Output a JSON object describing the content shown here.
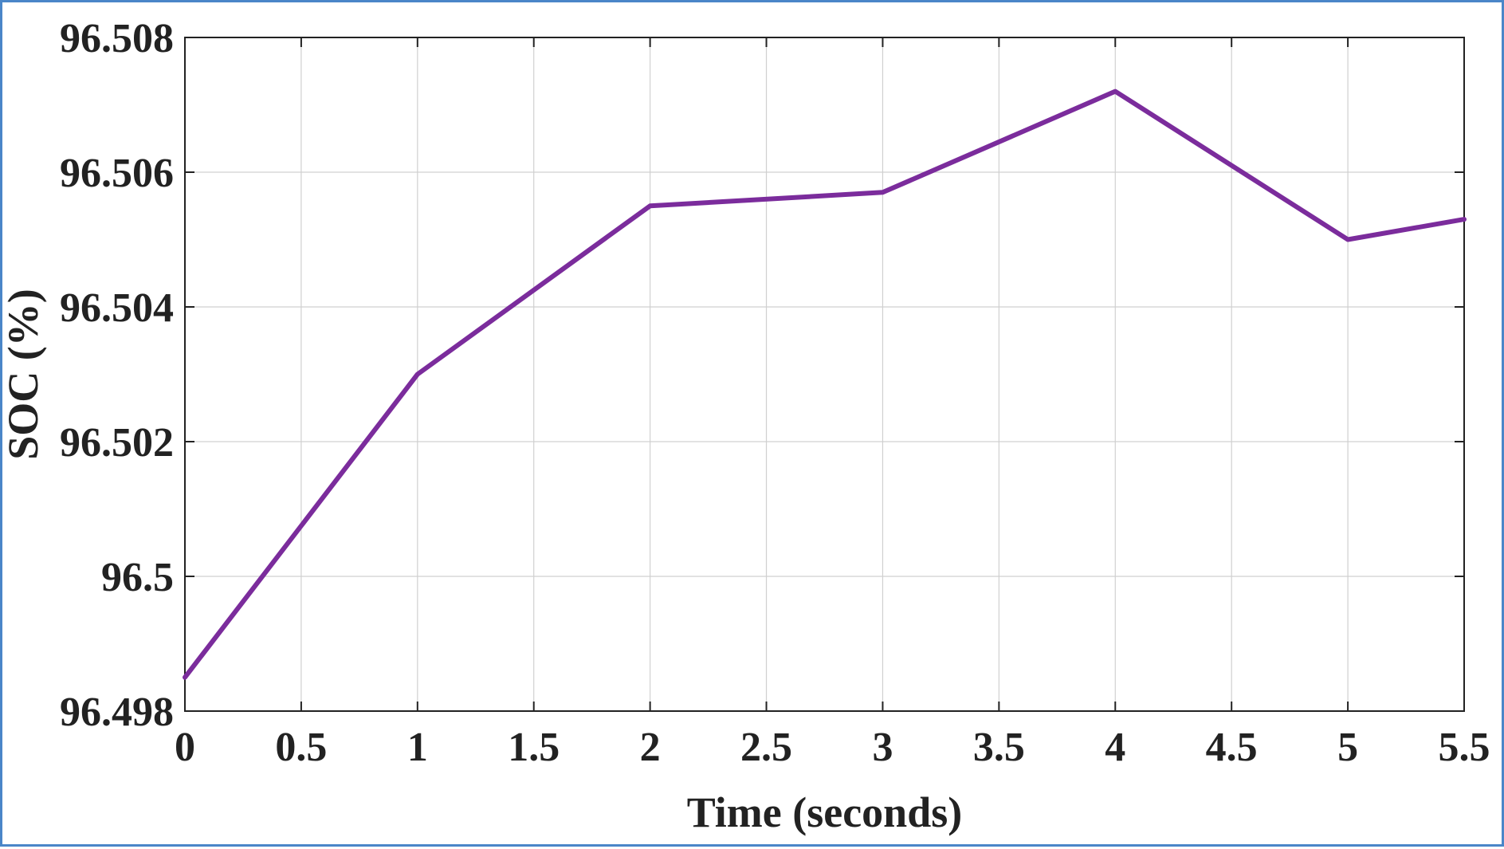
{
  "chart_data": {
    "type": "line",
    "xlabel": "Time (seconds)",
    "ylabel": "SOC (%)",
    "xlim": [
      0,
      5.5
    ],
    "ylim": [
      96.498,
      96.508
    ],
    "xticks": [
      "0",
      "0.5",
      "1",
      "1.5",
      "2",
      "2.5",
      "3",
      "3.5",
      "4",
      "4.5",
      "5",
      "5.5"
    ],
    "yticks": [
      "96.498",
      "96.5",
      "96.502",
      "96.504",
      "96.506",
      "96.508"
    ],
    "grid": true,
    "series": [
      {
        "color": "#7b2c9c",
        "x": [
          0,
          1,
          2,
          3,
          4,
          5,
          5.5
        ],
        "y": [
          96.4985,
          96.503,
          96.5055,
          96.5057,
          96.5072,
          96.505,
          96.5053
        ]
      }
    ]
  },
  "colors": {
    "frame_border": "#4a86c8",
    "axes": "#222222",
    "grid": "#d0d0d0"
  }
}
